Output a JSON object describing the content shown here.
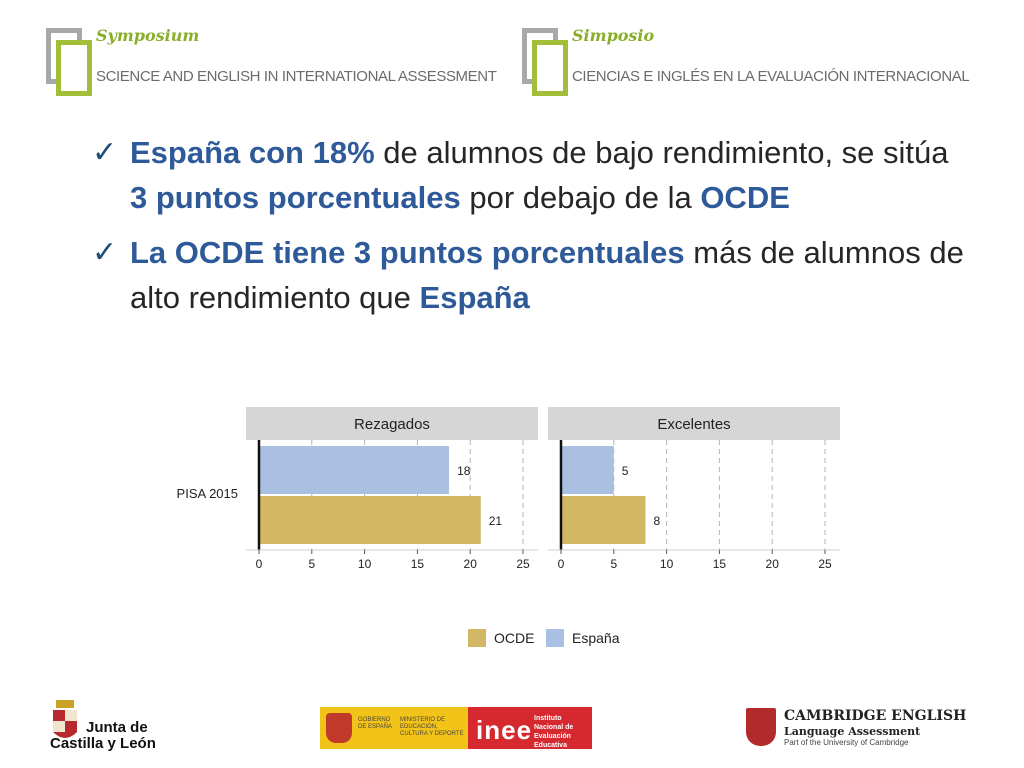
{
  "header": {
    "left": {
      "title": "Symposium",
      "subtitle": "SCIENCE AND ENGLISH IN INTERNATIONAL ASSESSMENT"
    },
    "right": {
      "title": "Simposio",
      "subtitle": "CIENCIAS E INGLÉS EN LA  EVALUACIÓN INTERNACIONAL"
    }
  },
  "bullets": [
    {
      "parts": [
        {
          "text": "España con 18%",
          "bold": true
        },
        {
          "text": " de alumnos de bajo rendimiento, se sitúa ",
          "bold": false
        },
        {
          "text": "3 puntos porcentuales",
          "bold": true
        },
        {
          "text": " por debajo de la ",
          "bold": false
        },
        {
          "text": "OCDE",
          "bold": true
        }
      ]
    },
    {
      "parts": [
        {
          "text": "La OCDE tiene 3 puntos porcentuales",
          "bold": true
        },
        {
          "text": " más de alumnos de alto rendimiento que ",
          "bold": false
        },
        {
          "text": "España",
          "bold": true
        }
      ]
    }
  ],
  "chart_data": {
    "type": "bar",
    "orientation": "horizontal",
    "category_label": "PISA 2015",
    "xlim": [
      0,
      25
    ],
    "ticks": [
      0,
      5,
      10,
      15,
      20,
      25
    ],
    "grid": "dashed vertical",
    "legend_position": "bottom",
    "colors": {
      "OCDE": "#d4b765",
      "España": "#a9c0e2",
      "panel_header": "#d6d6d6"
    },
    "panels": [
      {
        "title": "Rezagados",
        "series": [
          {
            "name": "España",
            "value": 18,
            "label": "18"
          },
          {
            "name": "OCDE",
            "value": 21,
            "label": "21"
          }
        ]
      },
      {
        "title": "Excelentes",
        "series": [
          {
            "name": "España",
            "value": 5,
            "label": "5"
          },
          {
            "name": "OCDE",
            "value": 8,
            "label": "8"
          }
        ]
      }
    ],
    "legend": [
      "OCDE",
      "España"
    ]
  },
  "footer": {
    "jcyl": {
      "line1": "Junta de",
      "line2": "Castilla y León"
    },
    "gobierno": {
      "t1": "GOBIERNO DE ESPAÑA",
      "t2": "MINISTERIO DE EDUCACIÓN, CULTURA Y DEPORTE",
      "inee": "inee",
      "inee_sub": "Instituto Nacional de Evaluación Educativa"
    },
    "cambridge": {
      "t1": "CAMBRIDGE ENGLISH",
      "t2": "Language Assessment",
      "t3": "Part of the University of Cambridge"
    }
  }
}
